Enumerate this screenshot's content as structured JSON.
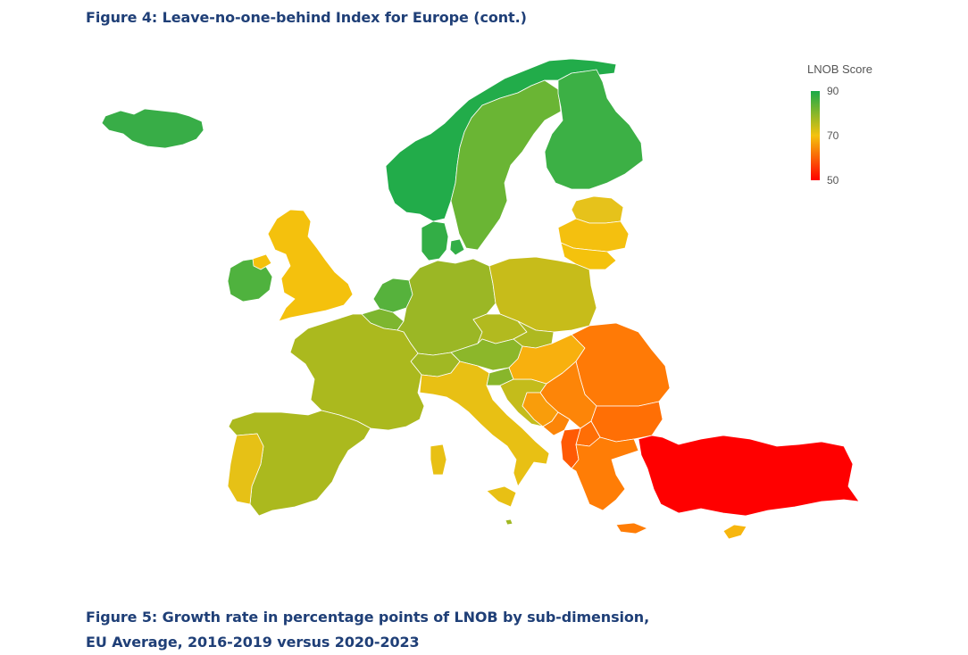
{
  "figure4": {
    "title": "Figure 4: Leave-no-one-behind Index for Europe (cont.)"
  },
  "figure5": {
    "title_line1": "Figure 5: Growth rate in percentage points of LNOB by sub-dimension,",
    "title_line2": "EU Average, 2016-2019 versus 2020-2023"
  },
  "legend": {
    "title": "LNOB Score",
    "min": 50,
    "max": 90,
    "ticks": [
      "90",
      "70",
      "50"
    ],
    "colors": {
      "high": "#1aaa48",
      "mid": "#f4c20d",
      "low": "#ff0000"
    }
  },
  "map_data": {
    "type": "choropleth",
    "metric": "LNOB Score",
    "regions": [
      {
        "id": "iceland",
        "score": 89,
        "color": "#38ad47"
      },
      {
        "id": "norway",
        "score": 90,
        "color": "#22ac4a"
      },
      {
        "id": "sweden",
        "score": 85,
        "color": "#6ab534"
      },
      {
        "id": "finland",
        "score": 89,
        "color": "#3cb045"
      },
      {
        "id": "denmark",
        "score": 89,
        "color": "#33ae46"
      },
      {
        "id": "estonia",
        "score": 73,
        "color": "#e6c21b"
      },
      {
        "id": "latvia",
        "score": 70,
        "color": "#f4c00f"
      },
      {
        "id": "lithuania",
        "score": 70,
        "color": "#f4c20d"
      },
      {
        "id": "ireland",
        "score": 87,
        "color": "#4fb23e"
      },
      {
        "id": "united-kingdom",
        "score": 70,
        "color": "#f4c10d"
      },
      {
        "id": "netherlands",
        "score": 87,
        "color": "#56b23c"
      },
      {
        "id": "belgium",
        "score": 84,
        "color": "#7db62f"
      },
      {
        "id": "germany",
        "score": 81,
        "color": "#9bb725"
      },
      {
        "id": "poland",
        "score": 76,
        "color": "#c7bc1a"
      },
      {
        "id": "czechia",
        "score": 79,
        "color": "#b2ba1f"
      },
      {
        "id": "slovakia",
        "score": 79,
        "color": "#aeb920"
      },
      {
        "id": "austria",
        "score": 83,
        "color": "#8cb72a"
      },
      {
        "id": "switzerland",
        "score": 80,
        "color": "#a1b823"
      },
      {
        "id": "france",
        "score": 79,
        "color": "#abb91e"
      },
      {
        "id": "spain",
        "score": 79,
        "color": "#abb91e"
      },
      {
        "id": "portugal",
        "score": 72,
        "color": "#e6c116"
      },
      {
        "id": "italy",
        "score": 72,
        "color": "#e8c014"
      },
      {
        "id": "slovenia",
        "score": 83,
        "color": "#88b62b"
      },
      {
        "id": "croatia",
        "score": 77,
        "color": "#c4bc1b"
      },
      {
        "id": "hungary",
        "score": 68,
        "color": "#f8b00e"
      },
      {
        "id": "romania",
        "score": 62,
        "color": "#ff7a06"
      },
      {
        "id": "bulgaria",
        "score": 61,
        "color": "#ff6f05"
      },
      {
        "id": "serbia",
        "score": 63,
        "color": "#fd8508"
      },
      {
        "id": "bosnia",
        "score": 66,
        "color": "#f99d0b"
      },
      {
        "id": "montenegro",
        "score": 63,
        "color": "#fc8508"
      },
      {
        "id": "north-macedonia",
        "score": 61,
        "color": "#ff6e05"
      },
      {
        "id": "albania",
        "score": 58,
        "color": "#ff5a04"
      },
      {
        "id": "greece",
        "score": 62,
        "color": "#ff7d06"
      },
      {
        "id": "cyprus",
        "score": 69,
        "color": "#f7b60e"
      },
      {
        "id": "malta",
        "score": 80,
        "color": "#a1b823"
      },
      {
        "id": "turkiye",
        "score": 50,
        "color": "#ff0000"
      }
    ]
  }
}
